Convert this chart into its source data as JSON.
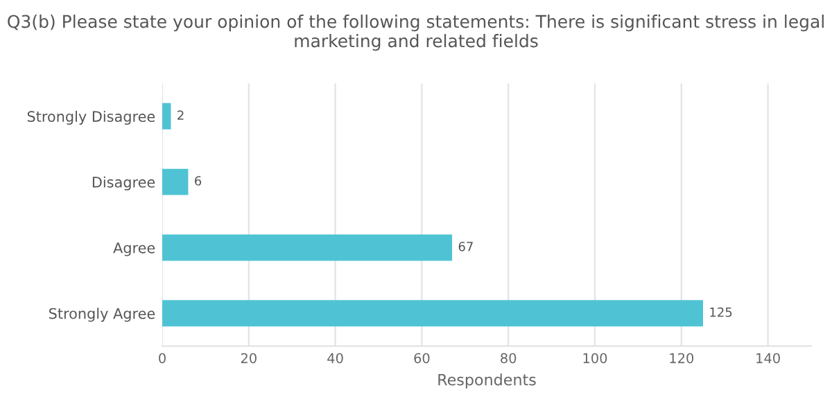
{
  "chart_data": {
    "type": "bar",
    "orientation": "horizontal",
    "title": "Q3(b) Please state your opinion of the following statements: There is significant stress in legal marketing and related fields",
    "categories": [
      "Strongly Disagree",
      "Disagree",
      "Agree",
      "Strongly Agree"
    ],
    "values": [
      2,
      6,
      67,
      125
    ],
    "color": "#4fc3d4",
    "xlabel": "Respondents",
    "xlim": [
      0,
      150
    ],
    "xticks": [
      0,
      20,
      40,
      60,
      80,
      100,
      120,
      140
    ],
    "grid": "x",
    "data_labels": true
  }
}
